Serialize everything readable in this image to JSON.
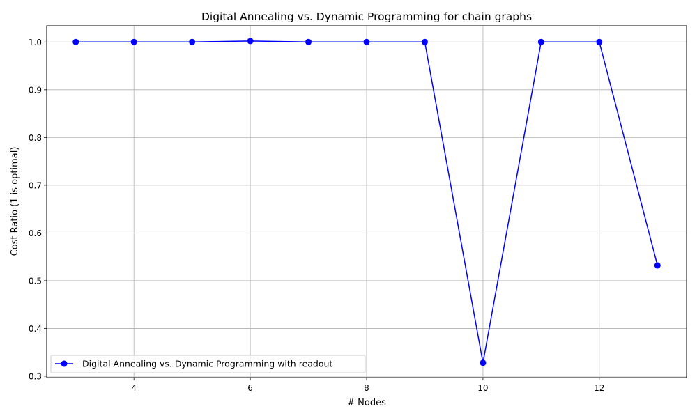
{
  "chart_data": {
    "type": "line",
    "title": "Digital Annealing vs. Dynamic Programming for chain graphs",
    "xlabel": "# Nodes",
    "ylabel": "Cost Ratio (1 is optimal)",
    "xlim": [
      2.5,
      13.5
    ],
    "ylim": [
      0.297,
      1.034
    ],
    "xticks": [
      4,
      6,
      8,
      10,
      12
    ],
    "yticks": [
      0.3,
      0.4,
      0.5,
      0.6,
      0.7,
      0.8,
      0.9,
      1.0
    ],
    "xtick_labels": [
      "4",
      "6",
      "8",
      "10",
      "12"
    ],
    "ytick_labels": [
      "0.3",
      "0.4",
      "0.5",
      "0.6",
      "0.7",
      "0.8",
      "0.9",
      "1.0"
    ],
    "grid": true,
    "legend_position": "lower left",
    "series": [
      {
        "name": "Digital Annealing vs. Dynamic Programming with readout",
        "color": "#0000ff",
        "marker": "circle",
        "x": [
          3,
          4,
          5,
          6,
          7,
          8,
          9,
          10,
          11,
          12,
          13
        ],
        "y": [
          1.0,
          1.0,
          1.0,
          1.002,
          1.0,
          1.0,
          1.0,
          0.328,
          1.0,
          1.0,
          0.532
        ]
      }
    ]
  }
}
